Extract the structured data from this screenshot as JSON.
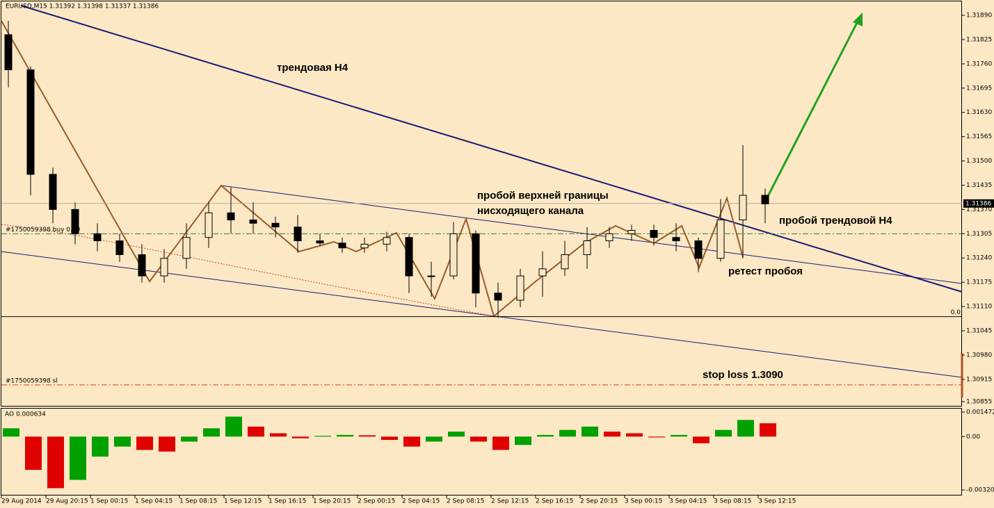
{
  "chart_data": {
    "type": "candlestick",
    "header": "EURUSD,M15  1.31392 1.31398 1.31337 1.31386",
    "categories": [
      "29 Aug 2014",
      null,
      "29 Aug 20:15",
      null,
      "1 Sep 00:15",
      null,
      "1 Sep 04:15",
      null,
      "1 Sep 08:15",
      null,
      "1 Sep 12:15",
      null,
      "1 Sep 16:15",
      null,
      "1 Sep 20:15",
      null,
      "2 Sep 00:15",
      null,
      "2 Sep 04:15",
      null,
      "2 Sep 08:15",
      null,
      "2 Sep 12:15",
      null,
      "2 Sep 16:15",
      null,
      "2 Sep 20:15",
      null,
      "3 Sep 00:15",
      null,
      "3 Sep 04:15",
      null,
      "3 Sep 08:15",
      null,
      "3 Sep 12:15"
    ],
    "open": [
      1.31838,
      1.31744,
      1.31464,
      1.3137,
      1.31305,
      1.31286,
      1.31249,
      1.31192,
      1.31239,
      1.31295,
      1.31361,
      1.31342,
      1.31333,
      1.31323,
      1.31286,
      1.3128,
      1.31267,
      1.31277,
      1.31295,
      1.31192,
      1.31192,
      1.31305,
      1.31146,
      1.31127,
      1.31192,
      1.31211,
      1.31249,
      1.31286,
      1.31305,
      1.31314,
      1.31295,
      1.31286,
      1.31239,
      1.31342,
      1.31408
    ],
    "high": [
      1.31875,
      1.31753,
      1.31482,
      1.31389,
      1.31333,
      1.31305,
      1.31277,
      1.31264,
      1.31333,
      1.31389,
      1.3143,
      1.31389,
      1.31351,
      1.31355,
      1.31305,
      1.31295,
      1.31295,
      1.3131,
      1.31305,
      1.3123,
      1.31336,
      1.31314,
      1.31174,
      1.31211,
      1.31258,
      1.31286,
      1.31323,
      1.31323,
      1.31329,
      1.31329,
      1.31333,
      1.31295,
      1.31398,
      1.31542,
      1.31426
    ],
    "low": [
      1.31697,
      1.31408,
      1.31333,
      1.31277,
      1.31258,
      1.3123,
      1.31174,
      1.31174,
      1.31211,
      1.31267,
      1.31305,
      1.31305,
      1.31295,
      1.31254,
      1.31273,
      1.31254,
      1.31254,
      1.31258,
      1.31146,
      1.31136,
      1.31183,
      1.31108,
      1.3108,
      1.31108,
      1.31136,
      1.31192,
      1.31211,
      1.31267,
      1.31286,
      1.31273,
      1.31258,
      1.31202,
      1.3123,
      1.31239,
      1.31333
    ],
    "close": [
      1.31744,
      1.31464,
      1.3137,
      1.31305,
      1.31286,
      1.31249,
      1.31192,
      1.31239,
      1.31295,
      1.31361,
      1.31342,
      1.31333,
      1.31323,
      1.31286,
      1.3128,
      1.31267,
      1.31277,
      1.31295,
      1.31192,
      1.31192,
      1.31305,
      1.31146,
      1.31127,
      1.31192,
      1.31211,
      1.31249,
      1.31286,
      1.31305,
      1.31314,
      1.31295,
      1.31286,
      1.31239,
      1.31342,
      1.31408,
      1.31385
    ],
    "ylim": [
      1.30844,
      1.31931
    ],
    "yticks": [
      {
        "value": 1.3189,
        "label": "1.31890"
      },
      {
        "value": 1.31825,
        "label": "1.31825"
      },
      {
        "value": 1.3176,
        "label": "1.31760"
      },
      {
        "value": 1.31695,
        "label": "1.31695"
      },
      {
        "value": 1.3163,
        "label": "1.31630"
      },
      {
        "value": 1.31565,
        "label": "1.31565"
      },
      {
        "value": 1.315,
        "label": "1.31500"
      },
      {
        "value": 1.31435,
        "label": "1.31435"
      },
      {
        "value": 1.3137,
        "label": "1.31370"
      },
      {
        "value": 1.31305,
        "label": "1.31305"
      },
      {
        "value": 1.3124,
        "label": "1.31240"
      },
      {
        "value": 1.31175,
        "label": "1.31175"
      },
      {
        "value": 1.3111,
        "label": "1.31110"
      },
      {
        "value": 1.31045,
        "label": "1.31045"
      },
      {
        "value": 1.3098,
        "label": "1.30980"
      },
      {
        "value": 1.30915,
        "label": "1.30915"
      },
      {
        "value": 1.30855,
        "label": "1.30855"
      }
    ],
    "current_price": 1.31386,
    "order_line": {
      "label": "#1750059398 buy 0.10",
      "value": 1.31305
    },
    "sl_line": {
      "label": "#1750059398 sl",
      "value": 1.309
    },
    "level_line": {
      "label": "0.0",
      "value": 1.31083
    },
    "annotations": [
      "трендовая H4",
      "пробой верхней границы",
      "нисходящего канала",
      "пробой трендовой H4",
      "ретест пробоя",
      "stop loss 1.3090"
    ],
    "bull_color": "#fbe6c2",
    "bear_color": "#000000",
    "ao": {
      "title": "AO 0.000634",
      "values": [
        0.0005,
        -0.002,
        -0.0031,
        -0.0026,
        -0.0012,
        -0.0006,
        -0.0008,
        -0.0009,
        -0.0003,
        0.0005,
        0.0012,
        0.0006,
        0.0002,
        -0.0001,
        5e-05,
        0.0001,
        8e-05,
        -0.0002,
        -0.0006,
        -0.0003,
        0.0003,
        -0.0003,
        -0.0008,
        -0.0005,
        0.0001,
        0.0004,
        0.0006,
        0.0003,
        0.0002,
        -5e-05,
        0.0001,
        -0.0004,
        0.0004,
        0.001,
        0.0008
      ],
      "ylim": [
        -0.003204,
        0.001472
      ],
      "yticks": [
        0.001472,
        {
          "value": 0,
          "label": "0.00"
        },
        -0.003204
      ],
      "up_color": "#00a000",
      "down_color": "#e00000"
    }
  }
}
